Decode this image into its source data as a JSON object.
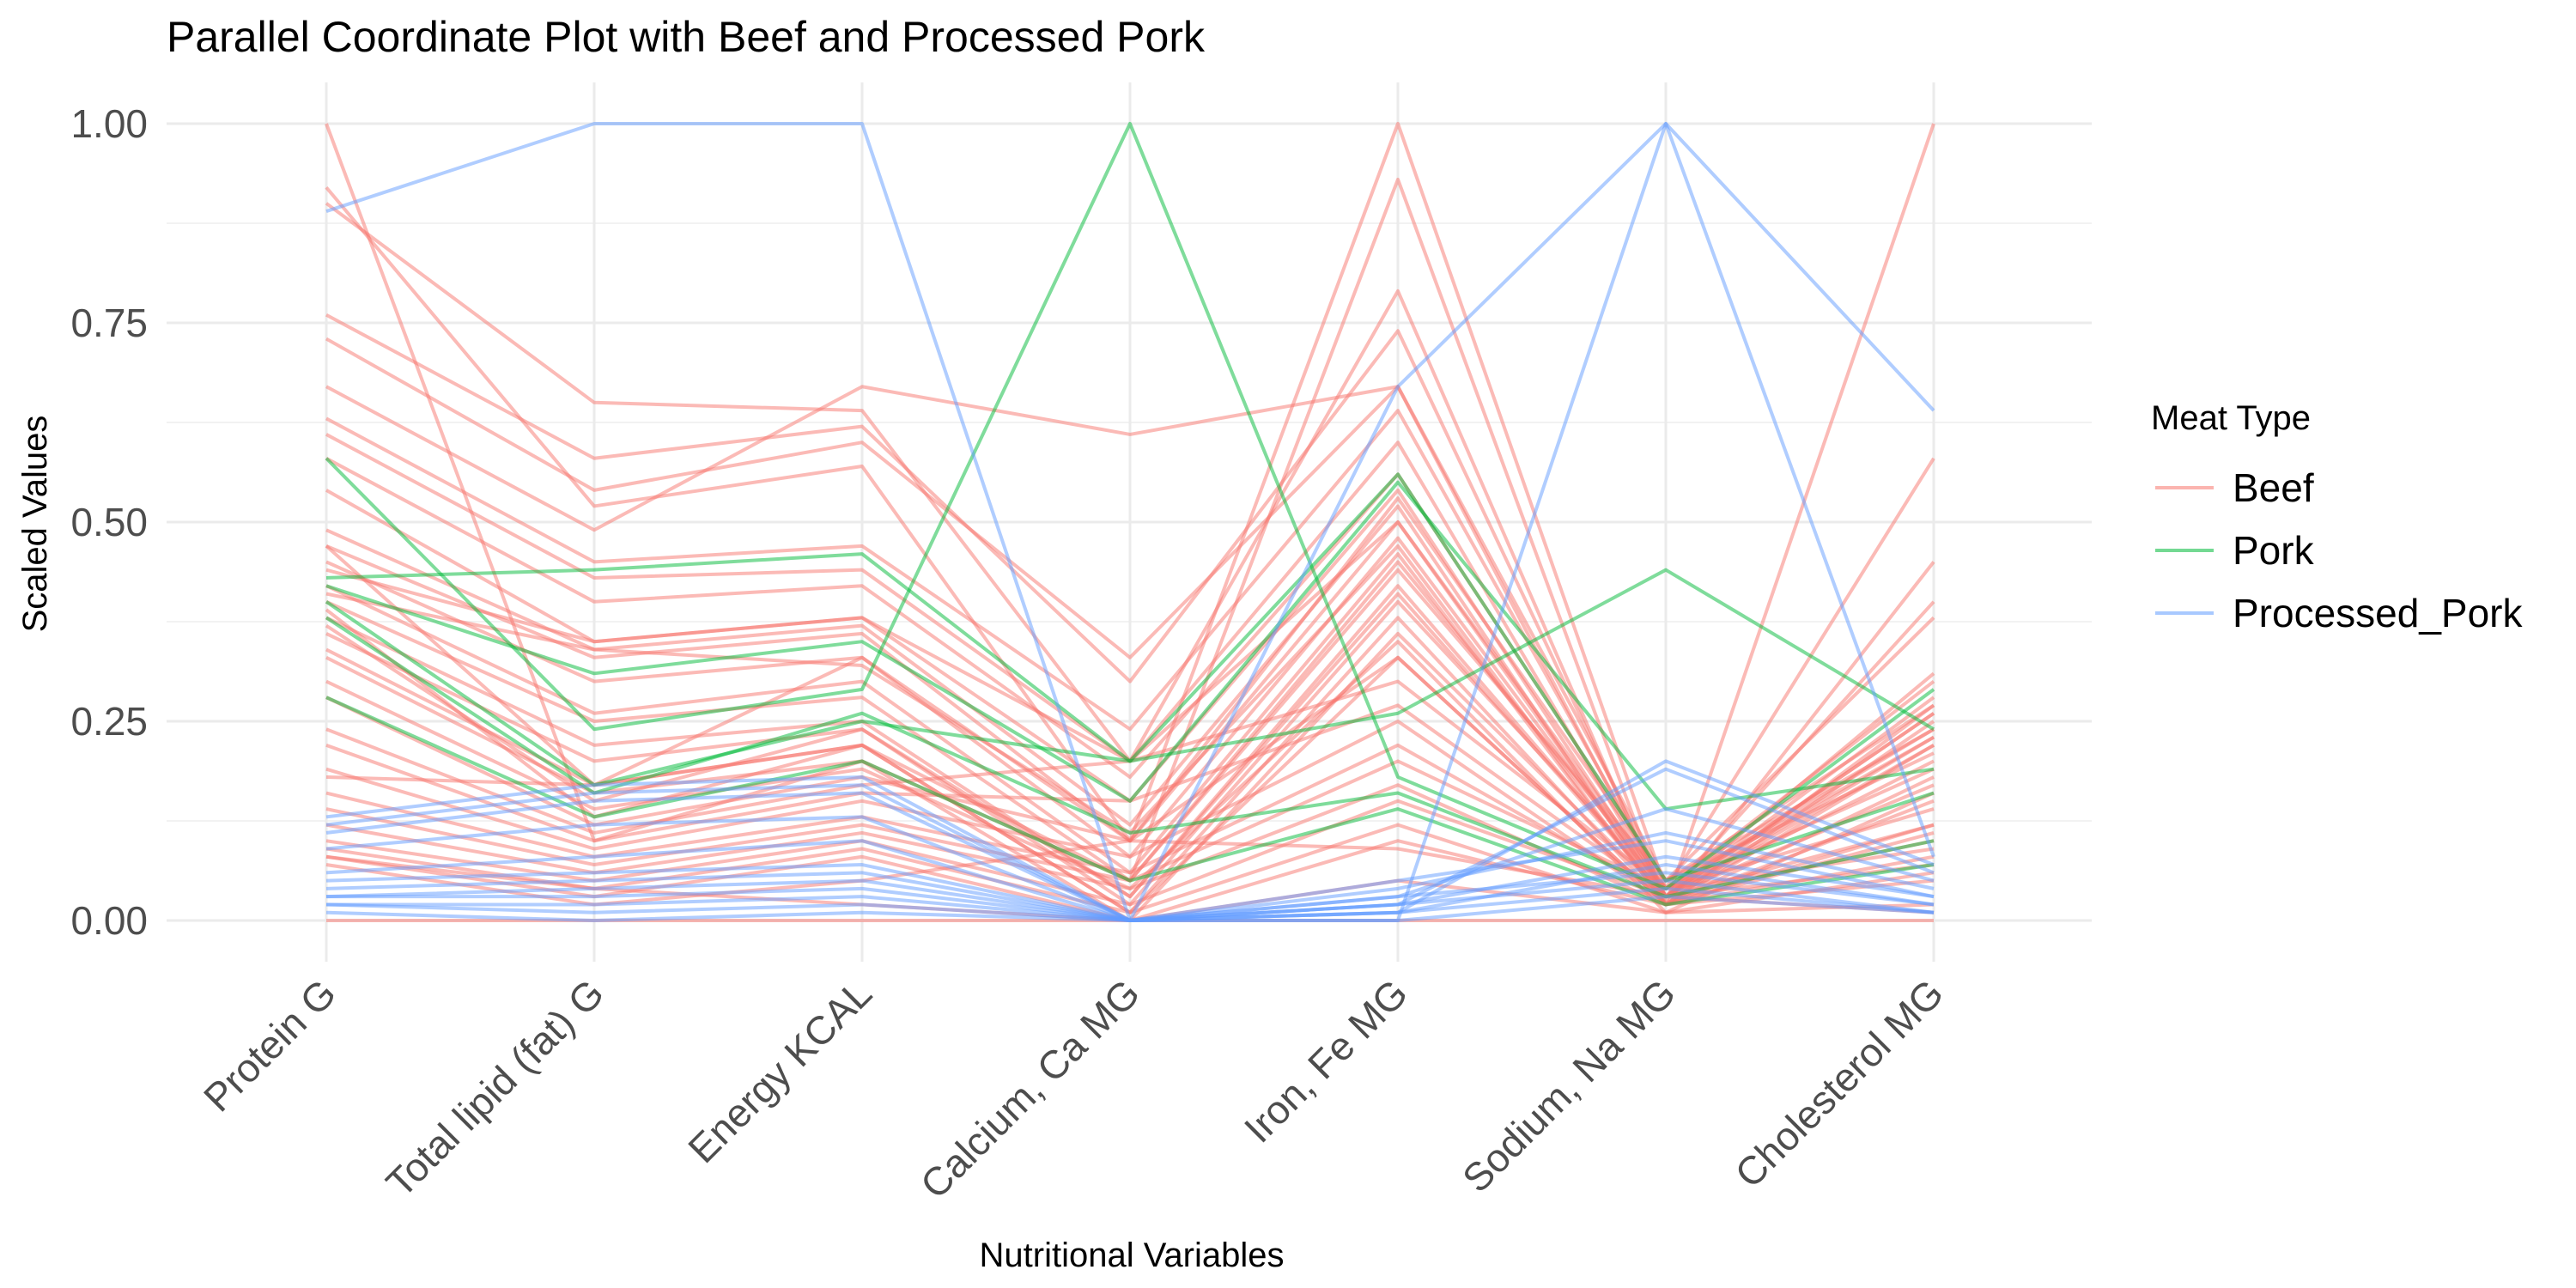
{
  "chart_data": {
    "type": "line",
    "title": "Parallel Coordinate Plot with Beef and Processed Pork",
    "xlabel": "Nutritional Variables",
    "ylabel": "Scaled Values",
    "ylim": [
      0,
      1
    ],
    "y_ticks": [
      "0.00",
      "0.25",
      "0.50",
      "0.75",
      "1.00"
    ],
    "y_tick_values": [
      0,
      0.25,
      0.5,
      0.75,
      1
    ],
    "categories": [
      "Protein G",
      "Total lipid (fat) G",
      "Energy KCAL",
      "Calcium, Ca MG",
      "Iron, Fe MG",
      "Sodium, Na MG",
      "Cholesterol MG"
    ],
    "grid": true,
    "legend_position": "right",
    "legend": {
      "title": "Meat Type",
      "entries": [
        {
          "name": "Beef",
          "color": "#F8766D"
        },
        {
          "name": "Pork",
          "color": "#00BA38"
        },
        {
          "name": "Processed_Pork",
          "color": "#619CFF"
        }
      ]
    },
    "series": [
      {
        "group": "Beef",
        "values": [
          1.0,
          0.1,
          0.2,
          0.05,
          0.93,
          0.02,
          1.0
        ]
      },
      {
        "group": "Beef",
        "values": [
          0.92,
          0.52,
          0.57,
          0.1,
          1.0,
          0.04,
          0.58
        ]
      },
      {
        "group": "Beef",
        "values": [
          0.9,
          0.65,
          0.64,
          0.2,
          0.79,
          0.02,
          0.45
        ]
      },
      {
        "group": "Beef",
        "values": [
          0.76,
          0.58,
          0.62,
          0.3,
          0.74,
          0.03,
          0.4
        ]
      },
      {
        "group": "Beef",
        "values": [
          0.73,
          0.54,
          0.6,
          0.33,
          0.67,
          0.05,
          0.38
        ]
      },
      {
        "group": "Beef",
        "values": [
          0.67,
          0.49,
          0.67,
          0.61,
          0.67,
          0.03,
          0.31
        ]
      },
      {
        "group": "Beef",
        "values": [
          0.63,
          0.45,
          0.47,
          0.24,
          0.64,
          0.04,
          0.3
        ]
      },
      {
        "group": "Beef",
        "values": [
          0.61,
          0.43,
          0.44,
          0.2,
          0.6,
          0.03,
          0.28
        ]
      },
      {
        "group": "Beef",
        "values": [
          0.58,
          0.4,
          0.42,
          0.18,
          0.56,
          0.05,
          0.27
        ]
      },
      {
        "group": "Beef",
        "values": [
          0.54,
          0.35,
          0.38,
          0.15,
          0.54,
          0.03,
          0.26
        ]
      },
      {
        "group": "Beef",
        "values": [
          0.49,
          0.34,
          0.37,
          0.12,
          0.52,
          0.02,
          0.25
        ]
      },
      {
        "group": "Beef",
        "values": [
          0.47,
          0.33,
          0.36,
          0.1,
          0.5,
          0.04,
          0.24
        ]
      },
      {
        "group": "Beef",
        "values": [
          0.45,
          0.3,
          0.33,
          0.08,
          0.48,
          0.03,
          0.23
        ]
      },
      {
        "group": "Beef",
        "values": [
          0.42,
          0.26,
          0.3,
          0.06,
          0.46,
          0.02,
          0.22
        ]
      },
      {
        "group": "Beef",
        "values": [
          0.4,
          0.25,
          0.28,
          0.05,
          0.44,
          0.05,
          0.21
        ]
      },
      {
        "group": "Beef",
        "values": [
          0.38,
          0.22,
          0.25,
          0.03,
          0.42,
          0.03,
          0.2
        ]
      },
      {
        "group": "Beef",
        "values": [
          0.36,
          0.2,
          0.24,
          0.02,
          0.4,
          0.04,
          0.19
        ]
      },
      {
        "group": "Beef",
        "values": [
          0.34,
          0.17,
          0.22,
          0.01,
          0.38,
          0.02,
          0.18
        ]
      },
      {
        "group": "Beef",
        "values": [
          0.33,
          0.16,
          0.2,
          0.0,
          0.36,
          0.03,
          0.17
        ]
      },
      {
        "group": "Beef",
        "values": [
          0.3,
          0.14,
          0.19,
          0.04,
          0.35,
          0.01,
          0.16
        ]
      },
      {
        "group": "Beef",
        "values": [
          0.28,
          0.12,
          0.18,
          0.1,
          0.33,
          0.02,
          0.15
        ]
      },
      {
        "group": "Beef",
        "values": [
          0.24,
          0.11,
          0.17,
          0.2,
          0.3,
          0.04,
          0.14
        ]
      },
      {
        "group": "Beef",
        "values": [
          0.22,
          0.1,
          0.16,
          0.15,
          0.27,
          0.03,
          0.12
        ]
      },
      {
        "group": "Beef",
        "values": [
          0.19,
          0.09,
          0.15,
          0.08,
          0.25,
          0.02,
          0.11
        ]
      },
      {
        "group": "Beef",
        "values": [
          0.16,
          0.08,
          0.13,
          0.06,
          0.22,
          0.03,
          0.1
        ]
      },
      {
        "group": "Beef",
        "values": [
          0.14,
          0.07,
          0.12,
          0.05,
          0.2,
          0.04,
          0.09
        ]
      },
      {
        "group": "Beef",
        "values": [
          0.12,
          0.06,
          0.11,
          0.04,
          0.17,
          0.02,
          0.08
        ]
      },
      {
        "group": "Beef",
        "values": [
          0.1,
          0.05,
          0.1,
          0.02,
          0.15,
          0.03,
          0.07
        ]
      },
      {
        "group": "Beef",
        "values": [
          0.09,
          0.04,
          0.09,
          0.01,
          0.12,
          0.01,
          0.06
        ]
      },
      {
        "group": "Beef",
        "values": [
          0.08,
          0.03,
          0.08,
          0.0,
          0.1,
          0.02,
          0.05
        ]
      },
      {
        "group": "Beef",
        "values": [
          0.47,
          0.17,
          0.33,
          0.1,
          0.53,
          0.05,
          0.24
        ]
      },
      {
        "group": "Beef",
        "values": [
          0.44,
          0.35,
          0.38,
          0.2,
          0.5,
          0.03,
          0.26
        ]
      },
      {
        "group": "Beef",
        "values": [
          0.41,
          0.34,
          0.32,
          0.11,
          0.47,
          0.02,
          0.27
        ]
      },
      {
        "group": "Beef",
        "values": [
          0.39,
          0.13,
          0.22,
          0.05,
          0.45,
          0.04,
          0.23
        ]
      },
      {
        "group": "Beef",
        "values": [
          0.37,
          0.15,
          0.24,
          0.03,
          0.41,
          0.03,
          0.22
        ]
      },
      {
        "group": "Beef",
        "values": [
          0.18,
          0.17,
          0.22,
          0.01,
          0.33,
          0.02,
          0.12
        ]
      },
      {
        "group": "Beef",
        "values": [
          0.08,
          0.04,
          0.02,
          0.0,
          0.05,
          0.01,
          0.02
        ]
      },
      {
        "group": "Beef",
        "values": [
          0.07,
          0.02,
          0.05,
          0.1,
          0.09,
          0.03,
          0.01
        ]
      },
      {
        "group": "Beef",
        "values": [
          0.0,
          0.0,
          0.0,
          0.0,
          0.0,
          0.0,
          0.0
        ]
      },
      {
        "group": "Pork",
        "values": [
          0.58,
          0.24,
          0.29,
          1.0,
          0.18,
          0.04,
          0.29
        ]
      },
      {
        "group": "Pork",
        "values": [
          0.43,
          0.44,
          0.46,
          0.2,
          0.26,
          0.44,
          0.24
        ]
      },
      {
        "group": "Pork",
        "values": [
          0.42,
          0.31,
          0.35,
          0.15,
          0.55,
          0.14,
          0.19
        ]
      },
      {
        "group": "Pork",
        "values": [
          0.4,
          0.17,
          0.25,
          0.2,
          0.56,
          0.05,
          0.16
        ]
      },
      {
        "group": "Pork",
        "values": [
          0.38,
          0.16,
          0.26,
          0.11,
          0.16,
          0.03,
          0.1
        ]
      },
      {
        "group": "Pork",
        "values": [
          0.28,
          0.13,
          0.2,
          0.05,
          0.14,
          0.02,
          0.07
        ]
      },
      {
        "group": "Processed_Pork",
        "values": [
          0.89,
          1.0,
          1.0,
          0.0,
          0.0,
          1.0,
          0.64
        ]
      },
      {
        "group": "Processed_Pork",
        "values": [
          0.13,
          0.17,
          0.18,
          0.0,
          0.67,
          1.0,
          0.08
        ]
      },
      {
        "group": "Processed_Pork",
        "values": [
          0.12,
          0.16,
          0.17,
          0.0,
          0.01,
          0.2,
          0.07
        ]
      },
      {
        "group": "Processed_Pork",
        "values": [
          0.11,
          0.15,
          0.16,
          0.0,
          0.02,
          0.19,
          0.06
        ]
      },
      {
        "group": "Processed_Pork",
        "values": [
          0.09,
          0.12,
          0.13,
          0.0,
          0.03,
          0.14,
          0.05
        ]
      },
      {
        "group": "Processed_Pork",
        "values": [
          0.06,
          0.08,
          0.1,
          0.0,
          0.04,
          0.11,
          0.04
        ]
      },
      {
        "group": "Processed_Pork",
        "values": [
          0.05,
          0.06,
          0.07,
          0.0,
          0.05,
          0.1,
          0.03
        ]
      },
      {
        "group": "Processed_Pork",
        "values": [
          0.04,
          0.05,
          0.06,
          0.0,
          0.02,
          0.08,
          0.03
        ]
      },
      {
        "group": "Processed_Pork",
        "values": [
          0.03,
          0.04,
          0.05,
          0.0,
          0.01,
          0.07,
          0.02
        ]
      },
      {
        "group": "Processed_Pork",
        "values": [
          0.03,
          0.03,
          0.04,
          0.0,
          0.03,
          0.06,
          0.02
        ]
      },
      {
        "group": "Processed_Pork",
        "values": [
          0.02,
          0.02,
          0.03,
          0.0,
          0.02,
          0.05,
          0.01
        ]
      },
      {
        "group": "Processed_Pork",
        "values": [
          0.02,
          0.01,
          0.02,
          0.0,
          0.01,
          0.04,
          0.01
        ]
      },
      {
        "group": "Processed_Pork",
        "values": [
          0.01,
          0.0,
          0.01,
          0.0,
          0.0,
          0.03,
          0.01
        ]
      }
    ]
  }
}
